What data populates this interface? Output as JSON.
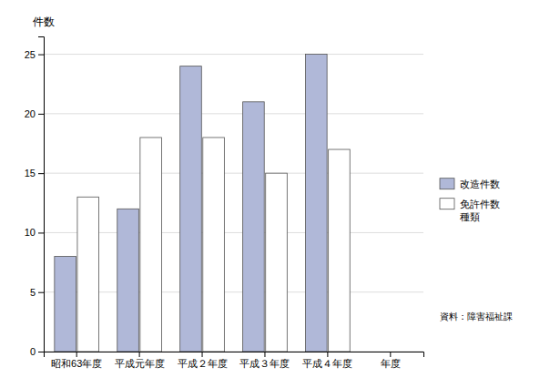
{
  "chart_data": {
    "type": "bar",
    "categories": [
      "昭和63年度",
      "平成元年度",
      "平成２年度",
      "平成３年度",
      "平成４年度",
      "年度"
    ],
    "series": [
      {
        "name": "改造件数",
        "color": "#b0b8d8",
        "values": [
          8,
          12,
          24,
          21,
          25,
          null
        ]
      },
      {
        "name": "免許件数\n種類",
        "color": "#ffffff",
        "values": [
          13,
          18,
          18,
          15,
          17,
          null
        ]
      }
    ],
    "ylabel": "件数",
    "ylim": [
      0,
      26.5
    ],
    "yticks": [
      0,
      5,
      10,
      15,
      20,
      25
    ],
    "grid": true,
    "legend": "right",
    "annotations": [
      "資料：障害福祉課"
    ]
  }
}
